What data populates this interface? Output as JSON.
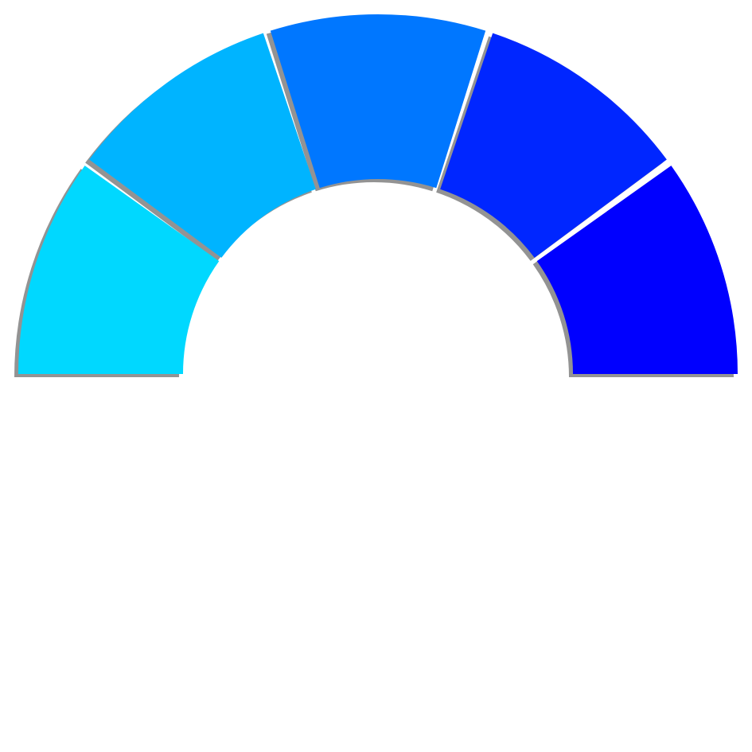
{
  "chart_data": {
    "type": "pie",
    "variant": "half-donut",
    "categories": [
      "",
      "",
      "",
      "",
      ""
    ],
    "values": [
      1,
      1,
      1,
      1,
      1
    ],
    "colors": [
      "#00d8ff",
      "#00b4ff",
      "#0077ff",
      "#0026ff",
      "#0000ff"
    ],
    "start_angle_deg": 180,
    "end_angle_deg": 0,
    "segment_gap_deg": 1.2
  }
}
